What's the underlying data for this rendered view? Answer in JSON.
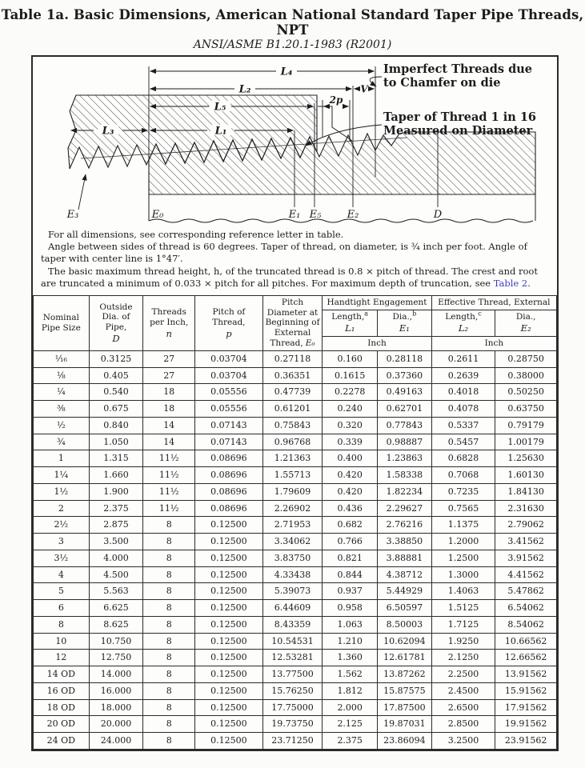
{
  "page_title": {
    "line1": "Table 1a.  Basic Dimensions, American National Standard Taper Pipe Threads, NPT",
    "line2": "ANSI/ASME B1.20.1-1983 (R2001)"
  },
  "diagram": {
    "dim_labels": {
      "l4": "L₄",
      "l2": "L₂",
      "v": "V",
      "l5": "L₅",
      "two_p": "2p",
      "l3": "L₃",
      "l1": "L₁"
    },
    "ref_labels": {
      "e3": "E₃",
      "e0": "E₀",
      "e1": "E₁",
      "e5": "E₅",
      "e2": "E₂",
      "d": "D"
    },
    "annotations": {
      "imperfect_line1": "Imperfect Threads due",
      "imperfect_line2": "to Chamfer on die",
      "taper_line1": "Taper of Thread 1 in 16",
      "taper_line2": "Measured on Diameter"
    }
  },
  "notes": {
    "n1": "For all dimensions, see corresponding reference letter in table.",
    "n2": "Angle between sides of thread is 60 degrees. Taper of thread, on diameter, is ¾ inch per foot. Angle of taper with center line is 1°47′.",
    "n3_before": "The basic maximum thread height, h, of the truncated thread is 0.8 × pitch of thread. The crest and root are truncated a minimum of 0.033 × pitch for all pitches. For maximum depth of truncation, see ",
    "n3_link": "Table 2",
    "n3_after": "."
  },
  "table": {
    "headers": {
      "nominal": "Nominal Pipe Size",
      "outside_label": "Outside Dia. of Pipe,",
      "outside_sym": "D",
      "threads_label": "Threads per Inch,",
      "threads_sym": "n",
      "pitch_label": "Pitch of Thread,",
      "pitch_sym": "p",
      "pd_label": "Pitch Diameter at Beginning of External Thread,",
      "pd_sym": "E₀",
      "handtight_group": "Handtight Engagement",
      "effective_group": "Effective Thread, External",
      "len1_label": "Length,",
      "len1_note": "a",
      "len1_sym": "L₁",
      "dia1_label": "Dia.,",
      "dia1_note": "b",
      "dia1_sym": "E₁",
      "len2_label": "Length,",
      "len2_note": "c",
      "len2_sym": "L₂",
      "dia2_label": "Dia.,",
      "dia2_sym": "E₂",
      "inch1": "Inch",
      "inch2": "Inch"
    },
    "rows": [
      [
        "¹⁄₁₆",
        "0.3125",
        "27",
        "0.03704",
        "0.27118",
        "0.160",
        "0.28118",
        "0.2611",
        "0.28750"
      ],
      [
        "⅛",
        "0.405",
        "27",
        "0.03704",
        "0.36351",
        "0.1615",
        "0.37360",
        "0.2639",
        "0.38000"
      ],
      [
        "¼",
        "0.540",
        "18",
        "0.05556",
        "0.47739",
        "0.2278",
        "0.49163",
        "0.4018",
        "0.50250"
      ],
      [
        "⅜",
        "0.675",
        "18",
        "0.05556",
        "0.61201",
        "0.240",
        "0.62701",
        "0.4078",
        "0.63750"
      ],
      [
        "½",
        "0.840",
        "14",
        "0.07143",
        "0.75843",
        "0.320",
        "0.77843",
        "0.5337",
        "0.79179"
      ],
      [
        "¾",
        "1.050",
        "14",
        "0.07143",
        "0.96768",
        "0.339",
        "0.98887",
        "0.5457",
        "1.00179"
      ],
      [
        "1",
        "1.315",
        "11½",
        "0.08696",
        "1.21363",
        "0.400",
        "1.23863",
        "0.6828",
        "1.25630"
      ],
      [
        "1¼",
        "1.660",
        "11½",
        "0.08696",
        "1.55713",
        "0.420",
        "1.58338",
        "0.7068",
        "1.60130"
      ],
      [
        "1½",
        "1.900",
        "11½",
        "0.08696",
        "1.79609",
        "0.420",
        "1.82234",
        "0.7235",
        "1.84130"
      ],
      [
        "2",
        "2.375",
        "11½",
        "0.08696",
        "2.26902",
        "0.436",
        "2.29627",
        "0.7565",
        "2.31630"
      ],
      [
        "2½",
        "2.875",
        "8",
        "0.12500",
        "2.71953",
        "0.682",
        "2.76216",
        "1.1375",
        "2.79062"
      ],
      [
        "3",
        "3.500",
        "8",
        "0.12500",
        "3.34062",
        "0.766",
        "3.38850",
        "1.2000",
        "3.41562"
      ],
      [
        "3½",
        "4.000",
        "8",
        "0.12500",
        "3.83750",
        "0.821",
        "3.88881",
        "1.2500",
        "3.91562"
      ],
      [
        "4",
        "4.500",
        "8",
        "0.12500",
        "4.33438",
        "0.844",
        "4.38712",
        "1.3000",
        "4.41562"
      ],
      [
        "5",
        "5.563",
        "8",
        "0.12500",
        "5.39073",
        "0.937",
        "5.44929",
        "1.4063",
        "5.47862"
      ],
      [
        "6",
        "6.625",
        "8",
        "0.12500",
        "6.44609",
        "0.958",
        "6.50597",
        "1.5125",
        "6.54062"
      ],
      [
        "8",
        "8.625",
        "8",
        "0.12500",
        "8.43359",
        "1.063",
        "8.50003",
        "1.7125",
        "8.54062"
      ],
      [
        "10",
        "10.750",
        "8",
        "0.12500",
        "10.54531",
        "1.210",
        "10.62094",
        "1.9250",
        "10.66562"
      ],
      [
        "12",
        "12.750",
        "8",
        "0.12500",
        "12.53281",
        "1.360",
        "12.61781",
        "2.1250",
        "12.66562"
      ],
      [
        "14 OD",
        "14.000",
        "8",
        "0.12500",
        "13.77500",
        "1.562",
        "13.87262",
        "2.2500",
        "13.91562"
      ],
      [
        "16 OD",
        "16.000",
        "8",
        "0.12500",
        "15.76250",
        "1.812",
        "15.87575",
        "2.4500",
        "15.91562"
      ],
      [
        "18 OD",
        "18.000",
        "8",
        "0.12500",
        "17.75000",
        "2.000",
        "17.87500",
        "2.6500",
        "17.91562"
      ],
      [
        "20 OD",
        "20.000",
        "8",
        "0.12500",
        "19.73750",
        "2.125",
        "19.87031",
        "2.8500",
        "19.91562"
      ],
      [
        "24 OD",
        "24.000",
        "8",
        "0.12500",
        "23.71250",
        "2.375",
        "23.86094",
        "3.2500",
        "23.91562"
      ]
    ]
  }
}
